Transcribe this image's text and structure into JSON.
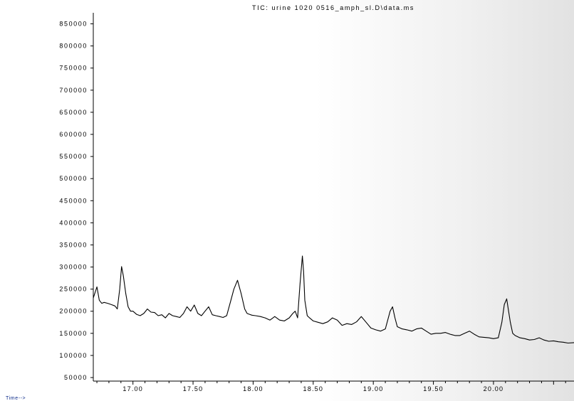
{
  "chart_data": {
    "type": "line",
    "title": "TIC: urine 1020 0516_amph_sl.D\\data.ms",
    "xlabel": "Time-->",
    "ylabel": "",
    "xlim": [
      16.67,
      20.67
    ],
    "ylim": [
      42000,
      875000
    ],
    "y_ticks": [
      50000,
      100000,
      150000,
      200000,
      250000,
      300000,
      350000,
      400000,
      450000,
      500000,
      550000,
      600000,
      650000,
      700000,
      750000,
      800000,
      850000
    ],
    "y_tick_labels": [
      "50000",
      "100000",
      "150000",
      "200000",
      "250000",
      "300000",
      "350000",
      "400000",
      "450000",
      "500000",
      "550000",
      "600000",
      "650000",
      "700000",
      "750000",
      "800000",
      "850000"
    ],
    "x_ticks": [
      17.0,
      17.5,
      18.0,
      18.5,
      19.0,
      19.5,
      20.0
    ],
    "x_tick_labels": [
      "17.00",
      "17.50",
      "18.00",
      "18.50",
      "19.00",
      "19.50",
      "20.00"
    ],
    "grid": false,
    "series": [
      {
        "color": "#000000",
        "x": [
          16.67,
          16.7,
          16.72,
          16.74,
          16.76,
          16.79,
          16.82,
          16.85,
          16.87,
          16.89,
          16.905,
          16.92,
          16.94,
          16.96,
          16.98,
          17.0,
          17.03,
          17.06,
          17.09,
          17.12,
          17.15,
          17.18,
          17.21,
          17.24,
          17.27,
          17.3,
          17.33,
          17.36,
          17.39,
          17.42,
          17.45,
          17.48,
          17.51,
          17.54,
          17.57,
          17.6,
          17.63,
          17.66,
          17.69,
          17.72,
          17.75,
          17.78,
          17.81,
          17.84,
          17.87,
          17.9,
          17.93,
          17.95,
          17.97,
          17.99,
          18.02,
          18.06,
          18.1,
          18.14,
          18.18,
          18.22,
          18.26,
          18.3,
          18.33,
          18.35,
          18.37,
          18.39,
          18.41,
          18.42,
          18.43,
          18.45,
          18.47,
          18.5,
          18.54,
          18.58,
          18.62,
          18.66,
          18.7,
          18.74,
          18.78,
          18.82,
          18.86,
          18.9,
          18.94,
          18.98,
          19.02,
          19.06,
          19.1,
          19.14,
          19.16,
          19.18,
          19.2,
          19.24,
          19.28,
          19.32,
          19.36,
          19.4,
          19.44,
          19.48,
          19.52,
          19.56,
          19.6,
          19.64,
          19.68,
          19.72,
          19.76,
          19.8,
          19.84,
          19.88,
          19.92,
          19.96,
          20.0,
          20.04,
          20.07,
          20.09,
          20.11,
          20.12,
          20.14,
          20.16,
          20.18,
          20.22,
          20.26,
          20.3,
          20.34,
          20.38,
          20.42,
          20.46,
          20.5,
          20.54,
          20.58,
          20.62,
          20.67
        ],
        "y": [
          230000,
          255000,
          225000,
          218000,
          220000,
          218000,
          215000,
          212000,
          205000,
          250000,
          301000,
          280000,
          240000,
          210000,
          200000,
          200000,
          193000,
          190000,
          195000,
          205000,
          198000,
          197000,
          190000,
          192000,
          185000,
          195000,
          190000,
          188000,
          186000,
          195000,
          210000,
          200000,
          214000,
          195000,
          190000,
          200000,
          210000,
          192000,
          190000,
          188000,
          186000,
          190000,
          220000,
          250000,
          270000,
          240000,
          205000,
          195000,
          193000,
          191000,
          190000,
          188000,
          185000,
          180000,
          188000,
          180000,
          178000,
          185000,
          195000,
          200000,
          185000,
          260000,
          325000,
          290000,
          225000,
          190000,
          185000,
          178000,
          175000,
          172000,
          176000,
          185000,
          180000,
          168000,
          172000,
          170000,
          176000,
          188000,
          175000,
          162000,
          158000,
          155000,
          160000,
          200000,
          210000,
          185000,
          165000,
          160000,
          158000,
          155000,
          160000,
          162000,
          155000,
          148000,
          150000,
          150000,
          152000,
          148000,
          145000,
          145000,
          150000,
          155000,
          148000,
          142000,
          141000,
          140000,
          138000,
          140000,
          175000,
          215000,
          228000,
          210000,
          175000,
          150000,
          145000,
          140000,
          138000,
          135000,
          136000,
          140000,
          135000,
          132000,
          133000,
          131000,
          130000,
          128000,
          129000
        ]
      }
    ]
  }
}
